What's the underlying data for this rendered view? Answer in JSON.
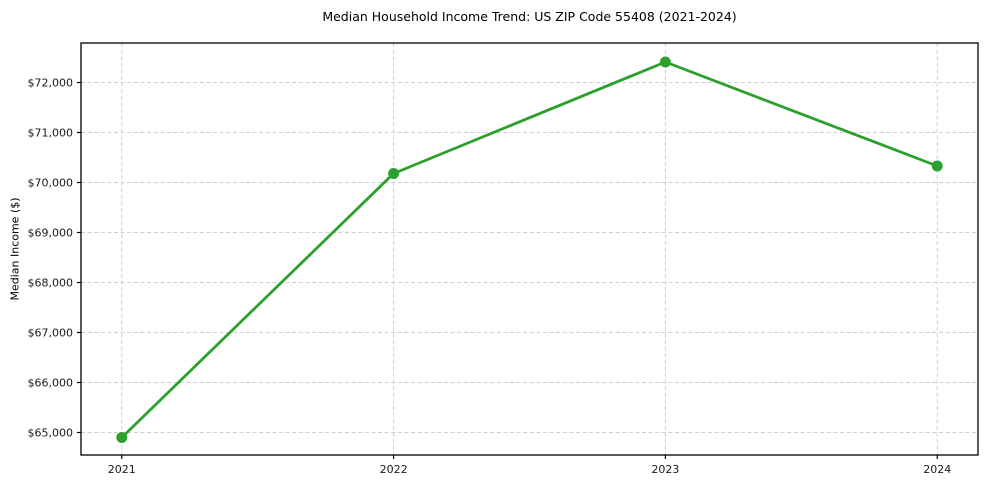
{
  "chart_data": {
    "type": "line",
    "title": "Median Household Income Trend: US ZIP Code 55408 (2021-2024)",
    "xlabel": "",
    "ylabel": "Median Income ($)",
    "x": [
      2021,
      2022,
      2023,
      2024
    ],
    "x_tick_labels": [
      "2021",
      "2022",
      "2023",
      "2024"
    ],
    "series": [
      {
        "values": [
          64900,
          70180,
          72410,
          70330
        ],
        "color": "#2ca02c",
        "marker": "circle"
      }
    ],
    "yticks": [
      65000,
      66000,
      67000,
      68000,
      69000,
      70000,
      71000,
      72000
    ],
    "ytick_labels": [
      "$65,000",
      "$66,000",
      "$67,000",
      "$68,000",
      "$69,000",
      "$70,000",
      "$71,000",
      "$72,000"
    ],
    "ylim": [
      64550,
      72790
    ],
    "xlim": [
      2020.85,
      2024.15
    ],
    "grid": "dashed",
    "grid_color": "#cfcfcf",
    "spine_color": "#000000",
    "legend": "none",
    "background": "#ffffff"
  }
}
